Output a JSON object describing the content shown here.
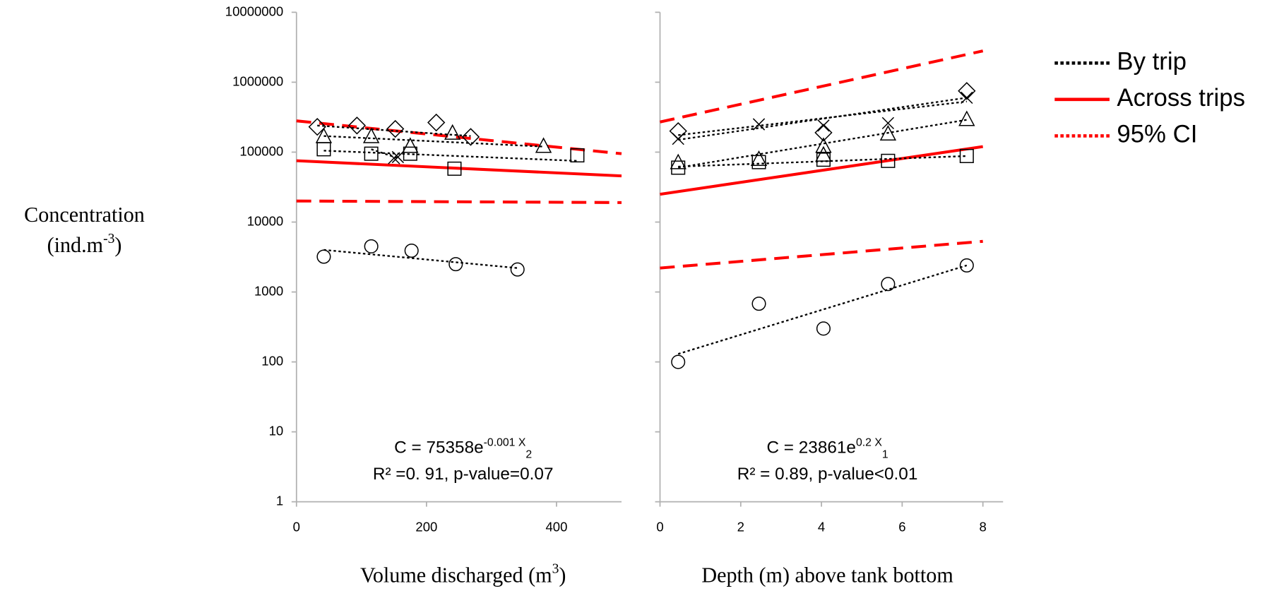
{
  "chart_data": [
    {
      "type": "scatter",
      "xlim": [
        0,
        500
      ],
      "xticks": [
        0,
        200,
        400
      ],
      "ylim": [
        1,
        10000000
      ],
      "yticks": [
        1,
        10,
        100,
        1000,
        10000,
        100000,
        1000000,
        10000000
      ],
      "log_y": true,
      "x_label": {
        "text": "Volume discharged (m",
        "sup": "3",
        "end": ")"
      },
      "y_label": {
        "line1": "Concentration",
        "text": "(ind.m",
        "sup": "-3",
        "end": ")"
      },
      "equation": {
        "text": "C = 75358e",
        "sup": "-0.001 X",
        "sub": "2",
        "stats": "R² =0. 91, p-value=0.07"
      },
      "fit_color": "#ff0000",
      "fit": {
        "x": [
          0,
          500
        ],
        "values": [
          75358,
          45700
        ]
      },
      "ci_upper": {
        "x": [
          0,
          500
        ],
        "values": [
          280000,
          95000
        ]
      },
      "ci_lower": {
        "x": [
          0,
          500
        ],
        "values": [
          20000,
          19000
        ]
      },
      "series": [
        {
          "marker": "diamond",
          "x": [
            32,
            93,
            152,
            215,
            268
          ],
          "values": [
            230000,
            240000,
            215000,
            265000,
            165000
          ],
          "trend": {
            "x": [
              32,
              268
            ],
            "values": [
              240000,
              170000
            ]
          }
        },
        {
          "marker": "triangle",
          "x": [
            42,
            115,
            175,
            240,
            380
          ],
          "values": [
            165000,
            165000,
            120000,
            185000,
            120000
          ],
          "trend": {
            "x": [
              42,
              380
            ],
            "values": [
              170000,
              120000
            ]
          }
        },
        {
          "marker": "square",
          "x": [
            42,
            115,
            175,
            243,
            432
          ],
          "values": [
            110000,
            95000,
            95000,
            58000,
            90000
          ],
          "trend": {
            "x": [
              42,
              432
            ],
            "values": [
              105000,
              75000
            ]
          }
        },
        {
          "marker": "x",
          "x": [
            150,
            156
          ],
          "values": [
            82000,
            85000
          ],
          "trend": {
            "x": [
              115,
              156
            ],
            "values": [
              110000,
              82000
            ]
          }
        },
        {
          "marker": "circle",
          "x": [
            42,
            115,
            177,
            245,
            340
          ],
          "values": [
            3200,
            4500,
            3900,
            2500,
            2100
          ],
          "trend": {
            "x": [
              42,
              340
            ],
            "values": [
              4000,
              2200
            ]
          }
        }
      ]
    },
    {
      "type": "scatter",
      "xlim": [
        0,
        8.5
      ],
      "xticks": [
        0,
        2,
        4,
        6,
        8
      ],
      "ylim": [
        1,
        10000000
      ],
      "log_y": true,
      "x_label": {
        "text": "Depth (m) above tank bottom"
      },
      "equation": {
        "text": "C = 23861e",
        "sup": "0.2 X",
        "sub": "1",
        "stats": "R² = 0.89, p-value<0.01"
      },
      "fit_color": "#ff0000",
      "fit": {
        "x": [
          0,
          8
        ],
        "values": [
          25000,
          120000
        ]
      },
      "ci_upper": {
        "x": [
          0,
          8
        ],
        "values": [
          270000,
          2800000
        ]
      },
      "ci_lower": {
        "x": [
          0,
          8
        ],
        "values": [
          2200,
          5300
        ]
      },
      "series": [
        {
          "marker": "diamond",
          "x": [
            0.45,
            4.05,
            7.6
          ],
          "values": [
            200000,
            190000,
            750000
          ],
          "trend": {
            "x": [
              0.45,
              7.6
            ],
            "values": [
              175000,
              530000
            ]
          }
        },
        {
          "marker": "x",
          "x": [
            0.45,
            2.45,
            4.05,
            5.65,
            7.6
          ],
          "values": [
            155000,
            250000,
            240000,
            260000,
            600000
          ],
          "trend": {
            "x": [
              0.45,
              7.6
            ],
            "values": [
              150000,
              600000
            ]
          }
        },
        {
          "marker": "triangle",
          "x": [
            0.45,
            2.45,
            4.05,
            4.05,
            5.65,
            7.6
          ],
          "values": [
            70000,
            78000,
            120000,
            90000,
            180000,
            290000
          ],
          "trend": {
            "x": [
              0.45,
              7.6
            ],
            "values": [
              60000,
              290000
            ]
          }
        },
        {
          "marker": "square",
          "x": [
            0.45,
            2.45,
            4.05,
            5.65,
            7.6
          ],
          "values": [
            60000,
            72000,
            78000,
            75000,
            88000
          ],
          "trend": {
            "x": [
              0.45,
              7.6
            ],
            "values": [
              62000,
              88000
            ]
          }
        },
        {
          "marker": "circle",
          "x": [
            0.45,
            2.45,
            4.05,
            5.65,
            7.6
          ],
          "values": [
            100,
            680,
            300,
            1300,
            2400
          ],
          "trend": {
            "x": [
              0.45,
              7.6
            ],
            "values": [
              130,
              2400
            ]
          }
        }
      ],
      "legend": [
        {
          "label": "By trip",
          "color": "#000000",
          "style": "dotted"
        },
        {
          "label": "Across trips",
          "color": "#ff0000",
          "style": "solid"
        },
        {
          "label": "95% CI",
          "color": "#ff0000",
          "style": "dotted"
        }
      ]
    }
  ]
}
